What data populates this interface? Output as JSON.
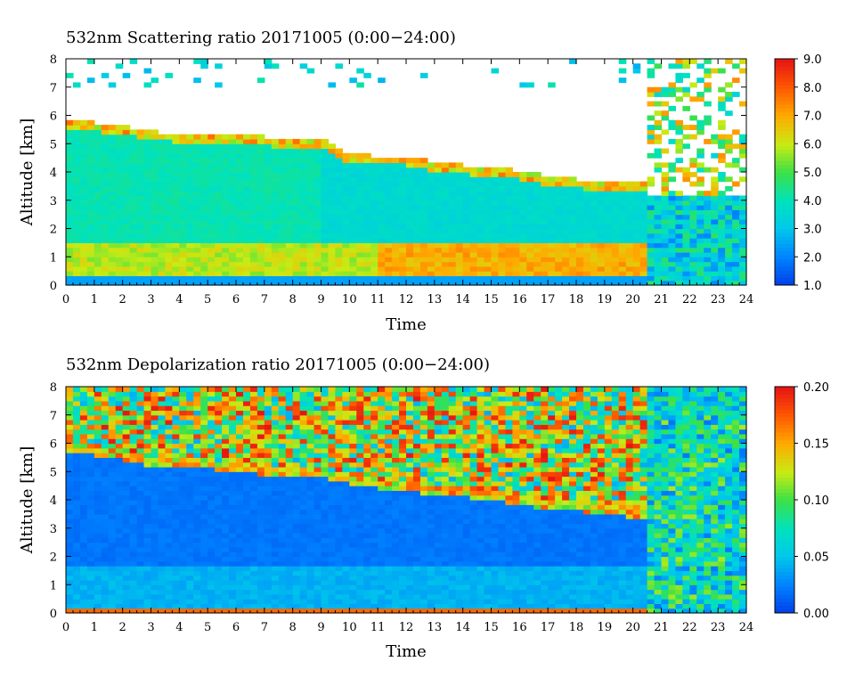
{
  "chart_data": [
    {
      "type": "heatmap",
      "title": "532nm Scattering ratio  20171005 (0:00−24:00)",
      "xlabel": "Time",
      "ylabel": "Altitude [km]",
      "xlim": [
        0,
        24
      ],
      "ylim": [
        0,
        8
      ],
      "x_ticks": [
        "0",
        "1",
        "2",
        "3",
        "4",
        "5",
        "6",
        "7",
        "8",
        "9",
        "10",
        "11",
        "12",
        "13",
        "14",
        "15",
        "16",
        "17",
        "18",
        "19",
        "20",
        "21",
        "22",
        "23",
        "24"
      ],
      "y_ticks": [
        "0",
        "1",
        "2",
        "3",
        "4",
        "5",
        "6",
        "7",
        "8"
      ],
      "colorbar": {
        "range": [
          1.0,
          9.0
        ],
        "ticks": [
          "1.0",
          "2.0",
          "3.0",
          "4.0",
          "5.0",
          "6.0",
          "7.0",
          "8.0",
          "9.0"
        ]
      },
      "cloud_top_km": [
        [
          0,
          5.7
        ],
        [
          1,
          5.6
        ],
        [
          2,
          5.5
        ],
        [
          3,
          5.3
        ],
        [
          4,
          5.2
        ],
        [
          5,
          5.2
        ],
        [
          6,
          5.2
        ],
        [
          7,
          5.1
        ],
        [
          8,
          5.0
        ],
        [
          9,
          5.0
        ],
        [
          10,
          4.5
        ],
        [
          11,
          4.4
        ],
        [
          12,
          4.4
        ],
        [
          13,
          4.2
        ],
        [
          14,
          4.1
        ],
        [
          15,
          4.0
        ],
        [
          16,
          3.9
        ],
        [
          17,
          3.7
        ],
        [
          18,
          3.6
        ],
        [
          19,
          3.5
        ],
        [
          20,
          3.5
        ],
        [
          20.5,
          3.5
        ]
      ],
      "aerosol_layer_km": [
        0.4,
        1.5
      ]
    },
    {
      "type": "heatmap",
      "title": "532nm Depolarization ratio  20171005 (0:00−24:00)",
      "xlabel": "Time",
      "ylabel": "Altitude [km]",
      "xlim": [
        0,
        24
      ],
      "ylim": [
        0,
        8
      ],
      "x_ticks": [
        "0",
        "1",
        "2",
        "3",
        "4",
        "5",
        "6",
        "7",
        "8",
        "9",
        "10",
        "11",
        "12",
        "13",
        "14",
        "15",
        "16",
        "17",
        "18",
        "19",
        "20",
        "21",
        "22",
        "23",
        "24"
      ],
      "y_ticks": [
        "0",
        "1",
        "2",
        "3",
        "4",
        "5",
        "6",
        "7",
        "8"
      ],
      "colorbar": {
        "range": [
          0.0,
          0.2
        ],
        "ticks": [
          "0.00",
          "0.05",
          "0.10",
          "0.15",
          "0.20"
        ]
      },
      "cloud_top_km": [
        [
          0,
          5.9
        ],
        [
          1,
          5.8
        ],
        [
          2,
          5.6
        ],
        [
          3,
          5.4
        ],
        [
          4,
          5.3
        ],
        [
          5,
          5.3
        ],
        [
          6,
          5.2
        ],
        [
          7,
          5.1
        ],
        [
          8,
          5.0
        ],
        [
          9,
          5.0
        ],
        [
          10,
          4.8
        ],
        [
          11,
          4.6
        ],
        [
          12,
          4.5
        ],
        [
          13,
          4.4
        ],
        [
          14,
          4.3
        ],
        [
          15,
          4.2
        ],
        [
          16,
          4.0
        ],
        [
          17,
          3.9
        ],
        [
          18,
          3.8
        ],
        [
          19,
          3.7
        ],
        [
          20,
          3.6
        ],
        [
          20.5,
          3.6
        ]
      ]
    }
  ]
}
